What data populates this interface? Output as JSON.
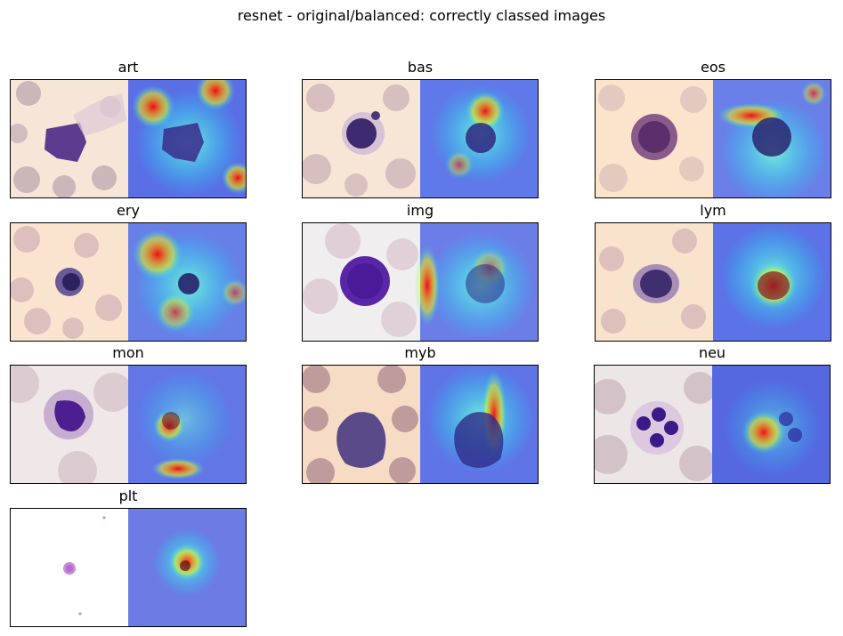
{
  "figure": {
    "title": "resnet - original/balanced: correctly classed images"
  },
  "panels": [
    {
      "label": "art",
      "cell": "smear with irregular purple cluster",
      "bg": "#f5e6d8"
    },
    {
      "label": "bas",
      "cell": "basophil",
      "bg": "#f7e6d6"
    },
    {
      "label": "eos",
      "cell": "eosinophil",
      "bg": "#fbe3cc"
    },
    {
      "label": "ery",
      "cell": "erythroblast",
      "bg": "#fbe4cf"
    },
    {
      "label": "img",
      "cell": "immature granulocyte",
      "bg": "#f1eef0"
    },
    {
      "label": "lym",
      "cell": "lymphocyte",
      "bg": "#fae3cc"
    },
    {
      "label": "mon",
      "cell": "monocyte",
      "bg": "#f0e8e8"
    },
    {
      "label": "myb",
      "cell": "myeloblast",
      "bg": "#f6dcc4"
    },
    {
      "label": "neu",
      "cell": "neutrophil",
      "bg": "#ece6e6"
    },
    {
      "label": "plt",
      "cell": "platelet",
      "bg": "#ffffff"
    }
  ]
}
